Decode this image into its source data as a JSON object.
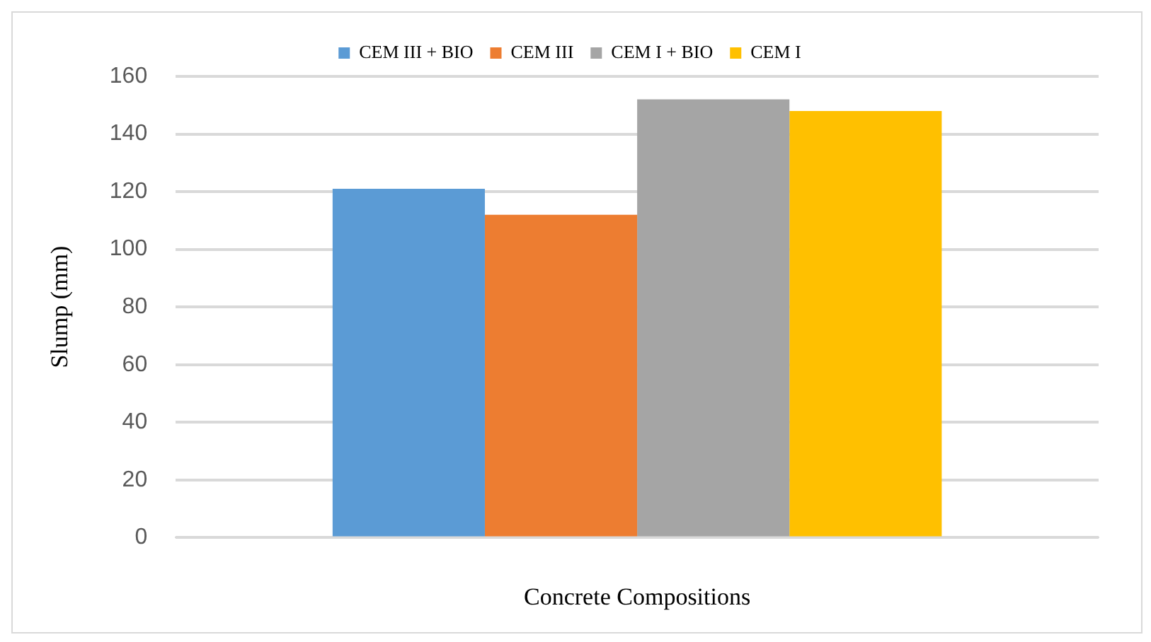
{
  "chart_data": {
    "type": "bar",
    "xlabel": "Concrete Compositions",
    "ylabel": "Slump (mm)",
    "categories": [
      null
    ],
    "series": [
      {
        "name": "CEM III + BIO",
        "color": "#5b9bd5",
        "values": [
          121
        ]
      },
      {
        "name": "CEM III",
        "color": "#ed7d31",
        "values": [
          112
        ]
      },
      {
        "name": "CEM I + BIO",
        "color": "#a5a5a5",
        "values": [
          152
        ]
      },
      {
        "name": "CEM I",
        "color": "#ffc000",
        "values": [
          148
        ]
      }
    ],
    "ylim": [
      0,
      160
    ],
    "yticks": [
      0,
      20,
      40,
      60,
      80,
      100,
      120,
      140,
      160
    ],
    "grid": "y",
    "legend": "top"
  }
}
